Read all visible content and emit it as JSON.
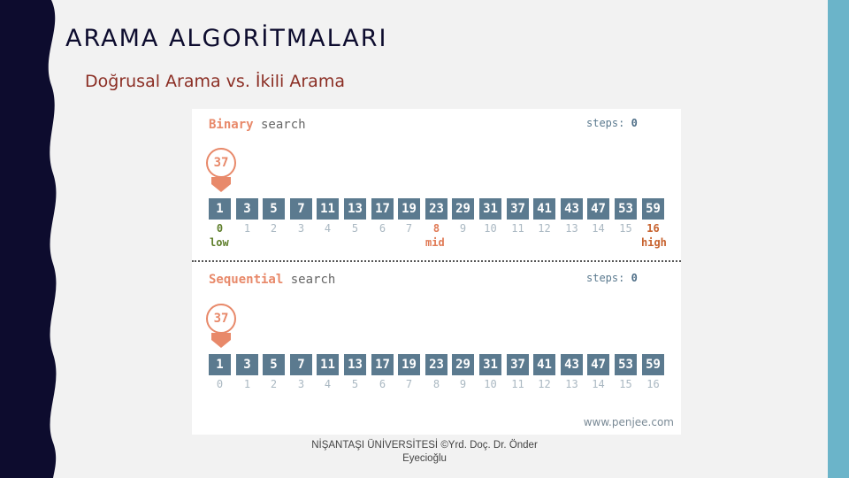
{
  "slide": {
    "title": "ARAMA ALGORİTMALARI",
    "subtitle": "Doğrusal Arama vs. İkili Arama",
    "footer": "NİŞANTAŞI ÜNİVERSİTESİ ©Yrd. Doç. Dr. Önder Eyecioğlu"
  },
  "figure": {
    "credit": "www.penjee.com",
    "values": [
      "1",
      "3",
      "5",
      "7",
      "11",
      "13",
      "17",
      "19",
      "23",
      "29",
      "31",
      "37",
      "41",
      "43",
      "47",
      "53",
      "59"
    ],
    "indices": [
      "0",
      "1",
      "2",
      "3",
      "4",
      "5",
      "6",
      "7",
      "8",
      "9",
      "10",
      "11",
      "12",
      "13",
      "14",
      "15",
      "16"
    ],
    "binary": {
      "title_highlight": "Binary",
      "title_rest": " search",
      "steps_label": "steps: ",
      "steps_value": "0",
      "target": "37",
      "low_label": "low",
      "mid_label": "mid",
      "high_label": "high"
    },
    "sequential": {
      "title_highlight": "Sequential",
      "title_rest": " search",
      "steps_label": "steps: ",
      "steps_value": "0",
      "target": "37"
    }
  },
  "colors": {
    "accent": "#e8896a",
    "cell": "#5b7a8f",
    "sidebar_dark": "#0d0c2e",
    "right_bar": "#6bb4c9"
  }
}
